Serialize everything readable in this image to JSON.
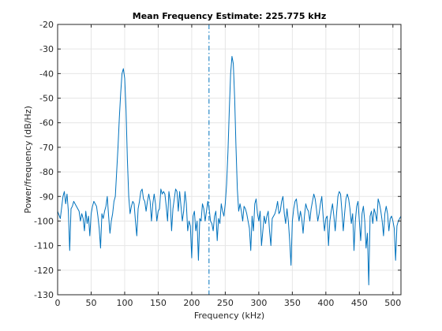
{
  "chart_data": {
    "type": "line",
    "title": "Mean Frequency Estimate: 225.775 kHz",
    "xlabel": "Frequency (kHz)",
    "ylabel": "Power/frequency (dB/Hz)",
    "xlim": [
      0,
      512
    ],
    "ylim": [
      -130,
      -20
    ],
    "xticks": [
      0,
      50,
      100,
      150,
      200,
      250,
      300,
      350,
      400,
      450,
      500
    ],
    "yticks": [
      -20,
      -30,
      -40,
      -50,
      -60,
      -70,
      -80,
      -90,
      -100,
      -110,
      -120,
      -130
    ],
    "grid": true,
    "legend": "none",
    "colors": {
      "series": "#0072BD",
      "mean_line": "#0072BD",
      "grid": "#e6e6e6",
      "axes": "#262626"
    },
    "mean_frequency": 225.775,
    "series": [
      {
        "x": [
          0,
          4,
          8,
          10,
          12,
          14,
          16,
          18,
          20,
          22,
          24,
          26,
          28,
          30,
          32,
          34,
          36,
          38,
          40,
          42,
          44,
          46,
          48,
          50,
          52,
          54,
          56,
          58,
          60,
          62,
          64,
          66,
          68,
          70,
          72,
          74,
          76,
          78,
          80,
          82,
          84,
          86,
          88,
          90,
          92,
          94,
          96,
          98,
          100,
          102,
          104,
          106,
          108,
          110,
          112,
          114,
          116,
          118,
          120,
          122,
          124,
          126,
          128,
          130,
          132,
          134,
          136,
          138,
          140,
          142,
          144,
          146,
          148,
          150,
          152,
          154,
          156,
          158,
          160,
          162,
          164,
          166,
          168,
          170,
          172,
          174,
          176,
          178,
          180,
          182,
          184,
          186,
          188,
          190,
          192,
          194,
          196,
          198,
          200,
          202,
          204,
          206,
          208,
          210,
          212,
          214,
          216,
          218,
          220,
          222,
          224,
          226,
          228,
          230,
          232,
          234,
          236,
          238,
          240,
          242,
          244,
          246,
          248,
          250,
          252,
          254,
          256,
          258,
          260,
          262,
          264,
          266,
          268,
          270,
          272,
          274,
          276,
          278,
          280,
          282,
          284,
          286,
          288,
          290,
          292,
          294,
          296,
          298,
          300,
          302,
          304,
          306,
          308,
          310,
          312,
          314,
          316,
          318,
          320,
          322,
          324,
          326,
          328,
          330,
          332,
          334,
          336,
          338,
          340,
          342,
          344,
          346,
          348,
          350,
          352,
          354,
          356,
          358,
          360,
          362,
          364,
          366,
          368,
          370,
          372,
          374,
          376,
          378,
          380,
          382,
          384,
          386,
          388,
          390,
          392,
          394,
          396,
          398,
          400,
          402,
          404,
          406,
          408,
          410,
          412,
          414,
          416,
          418,
          420,
          422,
          424,
          426,
          428,
          430,
          432,
          434,
          436,
          438,
          440,
          442,
          444,
          446,
          448,
          450,
          452,
          454,
          456,
          458,
          460,
          462,
          464,
          466,
          468,
          470,
          472,
          474,
          476,
          478,
          480,
          482,
          484,
          486,
          488,
          490,
          492,
          494,
          496,
          498,
          500,
          502,
          504,
          506,
          508,
          512
        ],
        "y": [
          -96,
          -99,
          -90,
          -88,
          -93,
          -89,
          -96,
          -112,
          -95,
          -94,
          -92,
          -93,
          -94,
          -95,
          -96,
          -100,
          -97,
          -99,
          -104,
          -96,
          -101,
          -98,
          -106,
          -97,
          -94,
          -92,
          -93,
          -94,
          -98,
          -103,
          -111,
          -97,
          -99,
          -96,
          -94,
          -90,
          -98,
          -105,
          -100,
          -97,
          -92,
          -90,
          -80,
          -70,
          -58,
          -48,
          -40,
          -38,
          -42,
          -55,
          -75,
          -90,
          -97,
          -94,
          -92,
          -93,
          -100,
          -106,
          -95,
          -92,
          -88,
          -87,
          -91,
          -92,
          -96,
          -92,
          -89,
          -92,
          -100,
          -93,
          -89,
          -93,
          -100,
          -96,
          -95,
          -87,
          -89,
          -88,
          -89,
          -94,
          -100,
          -88,
          -92,
          -104,
          -95,
          -91,
          -87,
          -88,
          -96,
          -88,
          -94,
          -100,
          -96,
          -88,
          -93,
          -104,
          -100,
          -102,
          -115,
          -98,
          -96,
          -104,
          -100,
          -116,
          -99,
          -100,
          -93,
          -95,
          -100,
          -96,
          -92,
          -95,
          -100,
          -101,
          -104,
          -98,
          -96,
          -108,
          -99,
          -101,
          -93,
          -96,
          -98,
          -93,
          -85,
          -72,
          -55,
          -40,
          -33,
          -36,
          -50,
          -70,
          -87,
          -96,
          -93,
          -96,
          -100,
          -94,
          -95,
          -97,
          -100,
          -103,
          -112,
          -98,
          -104,
          -93,
          -91,
          -97,
          -100,
          -96,
          -110,
          -104,
          -98,
          -101,
          -98,
          -96,
          -104,
          -110,
          -99,
          -98,
          -97,
          -95,
          -92,
          -97,
          -96,
          -92,
          -90,
          -97,
          -101,
          -95,
          -100,
          -108,
          -118,
          -100,
          -95,
          -92,
          -91,
          -96,
          -100,
          -96,
          -99,
          -105,
          -98,
          -93,
          -95,
          -96,
          -100,
          -95,
          -92,
          -89,
          -91,
          -95,
          -100,
          -97,
          -93,
          -90,
          -98,
          -104,
          -99,
          -98,
          -110,
          -100,
          -96,
          -93,
          -98,
          -104,
          -97,
          -90,
          -88,
          -89,
          -96,
          -104,
          -97,
          -91,
          -89,
          -91,
          -95,
          -101,
          -97,
          -112,
          -100,
          -94,
          -92,
          -100,
          -108,
          -97,
          -94,
          -100,
          -111,
          -105,
          -126,
          -98,
          -96,
          -101,
          -95,
          -97,
          -100,
          -91,
          -93,
          -96,
          -100,
          -106,
          -97,
          -94,
          -97,
          -104,
          -99,
          -98,
          -100,
          -103,
          -116,
          -102,
          -100,
          -98
        ]
      }
    ]
  }
}
